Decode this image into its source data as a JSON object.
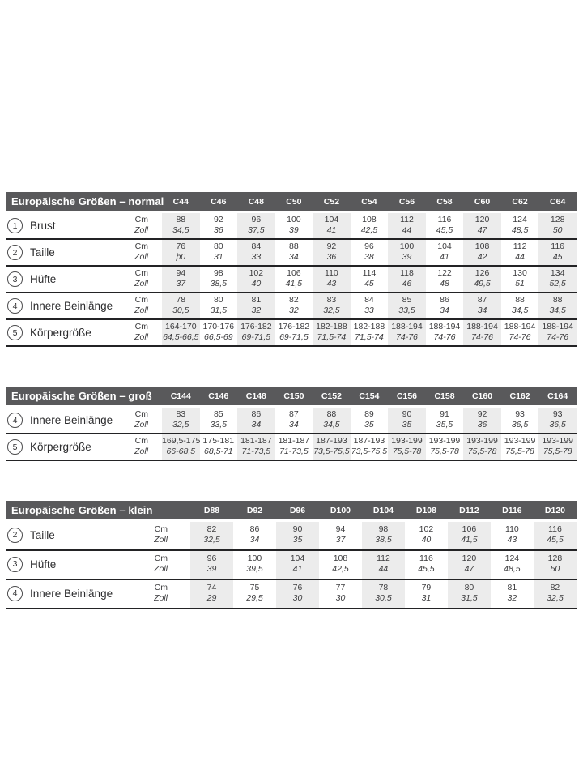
{
  "styles": {
    "title_bar_bg": "#59595b",
    "title_bar_text": "#ffffff",
    "shaded_column_bg": "#ececec",
    "rule_color": "#232325",
    "body_text": "#3c3c3e"
  },
  "unit_labels": {
    "cm": "Cm",
    "zoll": "Zoll"
  },
  "tables": [
    {
      "id": "normal",
      "title": "Europäische Größen – normal",
      "columns": [
        "C44",
        "C46",
        "C48",
        "C50",
        "C52",
        "C54",
        "C56",
        "C58",
        "C60",
        "C62",
        "C64"
      ],
      "rows": [
        {
          "num": "1",
          "label": "Brust",
          "cm": [
            "88",
            "92",
            "96",
            "100",
            "104",
            "108",
            "112",
            "116",
            "120",
            "124",
            "128"
          ],
          "zoll": [
            "34,5",
            "36",
            "37,5",
            "39",
            "41",
            "42,5",
            "44",
            "45,5",
            "47",
            "48,5",
            "50"
          ]
        },
        {
          "num": "2",
          "label": "Taille",
          "cm": [
            "76",
            "80",
            "84",
            "88",
            "92",
            "96",
            "100",
            "104",
            "108",
            "112",
            "116"
          ],
          "zoll": [
            "þ0",
            "31",
            "33",
            "34",
            "36",
            "38",
            "39",
            "41",
            "42",
            "44",
            "45"
          ]
        },
        {
          "num": "3",
          "label": "Hüfte",
          "cm": [
            "94",
            "98",
            "102",
            "106",
            "110",
            "114",
            "118",
            "122",
            "126",
            "130",
            "134"
          ],
          "zoll": [
            "37",
            "38,5",
            "40",
            "41,5",
            "43",
            "45",
            "46",
            "48",
            "49,5",
            "51",
            "52,5"
          ]
        },
        {
          "num": "4",
          "label": "Innere Beinlänge",
          "cm": [
            "78",
            "80",
            "81",
            "82",
            "83",
            "84",
            "85",
            "86",
            "87",
            "88",
            "88"
          ],
          "zoll": [
            "30,5",
            "31,5",
            "32",
            "32",
            "32,5",
            "33",
            "33,5",
            "34",
            "34",
            "34,5",
            "34,5"
          ]
        },
        {
          "num": "5",
          "label": "Körpergröße",
          "cm": [
            "164-170",
            "170-176",
            "176-182",
            "176-182",
            "182-188",
            "182-188",
            "188-194",
            "188-194",
            "188-194",
            "188-194",
            "188-194"
          ],
          "zoll": [
            "64,5-66,5",
            "66,5-69",
            "69-71,5",
            "69-71,5",
            "71,5-74",
            "71,5-74",
            "74-76",
            "74-76",
            "74-76",
            "74-76",
            "74-76"
          ]
        }
      ]
    },
    {
      "id": "gross",
      "title": "Europäische Größen – groß",
      "columns": [
        "C144",
        "C146",
        "C148",
        "C150",
        "C152",
        "C154",
        "C156",
        "C158",
        "C160",
        "C162",
        "C164"
      ],
      "rows": [
        {
          "num": "4",
          "label": "Innere Beinlänge",
          "cm": [
            "83",
            "85",
            "86",
            "87",
            "88",
            "89",
            "90",
            "91",
            "92",
            "93",
            "93"
          ],
          "zoll": [
            "32,5",
            "33,5",
            "34",
            "34",
            "34,5",
            "35",
            "35",
            "35,5",
            "36",
            "36,5",
            "36,5"
          ]
        },
        {
          "num": "5",
          "label": "Körpergröße",
          "cm": [
            "169,5-175",
            "175-181",
            "181-187",
            "181-187",
            "187-193",
            "187-193",
            "193-199",
            "193-199",
            "193-199",
            "193-199",
            "193-199"
          ],
          "zoll": [
            "66-68,5",
            "68,5-71",
            "71-73,5",
            "71-73,5",
            "73,5-75,5",
            "73,5-75,5",
            "75,5-78",
            "75,5-78",
            "75,5-78",
            "75,5-78",
            "75,5-78"
          ]
        }
      ]
    },
    {
      "id": "klein",
      "title": "Europäische Größen – klein",
      "columns": [
        "D88",
        "D92",
        "D96",
        "D100",
        "D104",
        "D108",
        "D112",
        "D116",
        "D120"
      ],
      "rows": [
        {
          "num": "2",
          "label": "Taille",
          "cm": [
            "82",
            "86",
            "90",
            "94",
            "98",
            "102",
            "106",
            "110",
            "116"
          ],
          "zoll": [
            "32,5",
            "34",
            "35",
            "37",
            "38,5",
            "40",
            "41,5",
            "43",
            "45,5"
          ]
        },
        {
          "num": "3",
          "label": "Hüfte",
          "cm": [
            "96",
            "100",
            "104",
            "108",
            "112",
            "116",
            "120",
            "124",
            "128"
          ],
          "zoll": [
            "39",
            "39,5",
            "41",
            "42,5",
            "44",
            "45,5",
            "47",
            "48,5",
            "50"
          ]
        },
        {
          "num": "4",
          "label": "Innere Beinlänge",
          "cm": [
            "74",
            "75",
            "76",
            "77",
            "78",
            "79",
            "80",
            "81",
            "82"
          ],
          "zoll": [
            "29",
            "29,5",
            "30",
            "30",
            "30,5",
            "31",
            "31,5",
            "32",
            "32,5"
          ]
        }
      ]
    }
  ]
}
